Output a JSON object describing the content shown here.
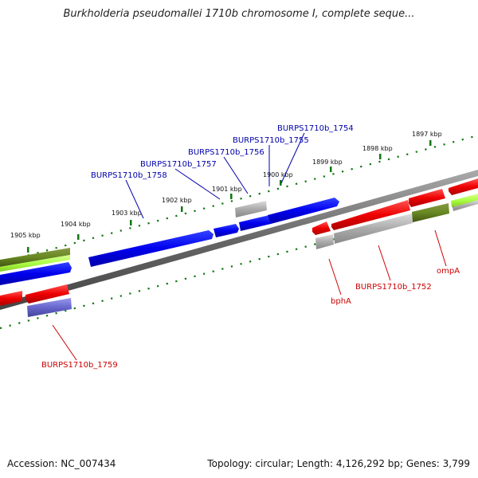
{
  "title": "Burkholderia pseudomallei 1710b chromosome I, complete seque...",
  "footer": {
    "accession": "Accession: NC_007434",
    "summary": "Topology: circular; Length: 4,126,292 bp; Genes: 3,799"
  },
  "ticks": [
    "1905 kbp",
    "1904 kbp",
    "1903 kbp",
    "1902 kbp",
    "1901 kbp",
    "1900 kbp",
    "1899 kbp",
    "1898 kbp",
    "1897 kbp"
  ],
  "genes_top": [
    "BURPS1710b_1758",
    "BURPS1710b_1757",
    "BURPS1710b_1756",
    "BURPS1710b_1755",
    "BURPS1710b_1754"
  ],
  "genes_bottom": [
    "BURPS1710b_1759",
    "bphA",
    "BURPS1710b_1752",
    "ompA"
  ],
  "colors": {
    "forward": "#0000ee",
    "reverse": "#ee0000",
    "grey": "#aaaaaa",
    "olive": "#668822",
    "lime": "#aaff44",
    "violet": "#6666cc",
    "tick": "#117711"
  }
}
